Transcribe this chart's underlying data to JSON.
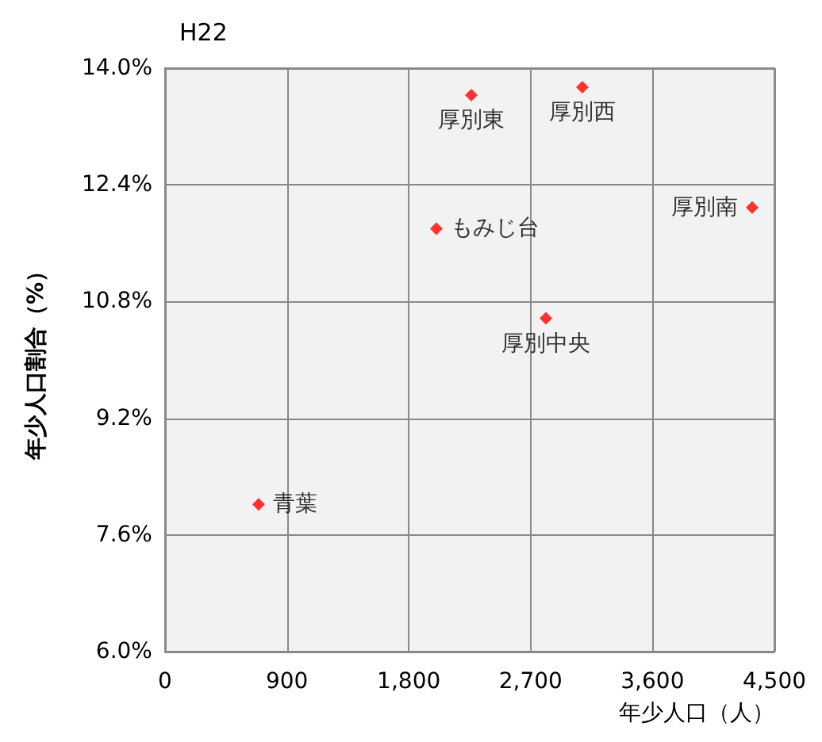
{
  "chart_data": {
    "type": "scatter",
    "title": "H22",
    "xlabel": "年少人口（人）",
    "ylabel": "年少人口割合（%）",
    "series": [
      {
        "color": "#ff0000",
        "x": [
          2262,
          3082,
          4336,
          2004,
          2813,
          691
        ],
        "values": [
          13.63,
          13.74,
          12.09,
          11.8,
          10.57,
          8.02
        ]
      }
    ],
    "annotations": [
      {
        "text": "厚別東",
        "x": 2262,
        "y": 13.63
      },
      {
        "text": "厚別西",
        "x": 3082,
        "y": 13.74
      },
      {
        "text": "厚別南",
        "x": 4336,
        "y": 12.09
      },
      {
        "text": "もみじ台",
        "x": 2004,
        "y": 11.8
      },
      {
        "text": "厚別中央",
        "x": 2813,
        "y": 10.57
      },
      {
        "text": "青葉",
        "x": 691,
        "y": 8.02
      }
    ],
    "xlim": [
      0,
      4500
    ],
    "xticks": [
      0,
      900,
      {
        "value": 1800,
        "label": "1,800"
      },
      {
        "value": 2700,
        "label": "2,700"
      },
      {
        "value": 3600,
        "label": "3,600"
      },
      {
        "value": 4500,
        "label": "4,500"
      }
    ],
    "ylim": [
      6,
      14
    ],
    "yticks": [
      {
        "value": 6,
        "label": "6.0%"
      },
      {
        "value": 7.6,
        "label": "7.6%"
      },
      {
        "value": 9.2,
        "label": "9.2%"
      },
      {
        "value": 10.8,
        "label": "10.8%"
      },
      {
        "value": 12.4,
        "label": "12.4%"
      },
      {
        "value": 14,
        "label": "14.0%"
      }
    ],
    "grid": true,
    "marker": "diamond"
  }
}
